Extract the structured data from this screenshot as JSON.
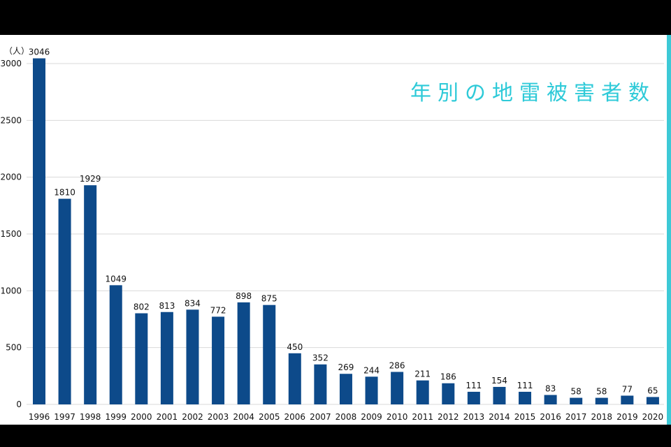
{
  "chart_data": {
    "type": "bar",
    "title": "年別の地雷被害者数",
    "unit_label": "（人）",
    "xlabel": "",
    "ylabel": "",
    "ylim": [
      0,
      3100
    ],
    "y_ticks": [
      0,
      500,
      1000,
      1500,
      2000,
      2500,
      3000
    ],
    "grid": true,
    "categories": [
      "1996",
      "1997",
      "1998",
      "1999",
      "2000",
      "2001",
      "2002",
      "2003",
      "2004",
      "2005",
      "2006",
      "2007",
      "2008",
      "2009",
      "2010",
      "2011",
      "2012",
      "2013",
      "2014",
      "2015",
      "2016",
      "2017",
      "2018",
      "2019",
      "2020"
    ],
    "values": [
      3046,
      1810,
      1929,
      1049,
      802,
      813,
      834,
      772,
      898,
      875,
      450,
      352,
      269,
      244,
      286,
      211,
      186,
      111,
      154,
      111,
      83,
      58,
      58,
      77,
      65
    ],
    "data_labels": [
      "3046",
      "1810",
      "1929",
      "1049",
      "802",
      "813",
      "834",
      "772",
      "898",
      "875",
      "450",
      "352",
      "269",
      "244",
      "286",
      "211",
      "186",
      "111",
      "154",
      "111",
      "83",
      "58",
      "58",
      "77",
      "65"
    ]
  },
  "colors": {
    "bar": "#0d4a8a",
    "grid": "#d9d9d9",
    "title": "#2ecad8",
    "background": "#ffffff",
    "frame": "#000000",
    "edge_accent": "#3cc9d6"
  }
}
